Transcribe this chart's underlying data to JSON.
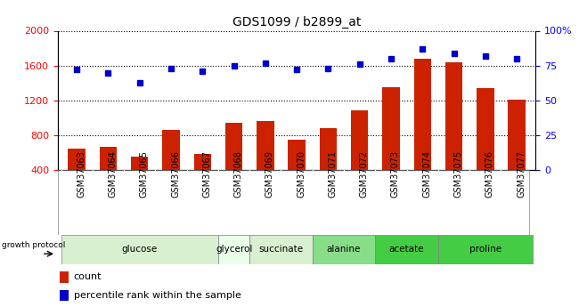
{
  "title": "GDS1099 / b2899_at",
  "samples": [
    "GSM37063",
    "GSM37064",
    "GSM37065",
    "GSM37066",
    "GSM37067",
    "GSM37068",
    "GSM37069",
    "GSM37070",
    "GSM37071",
    "GSM37072",
    "GSM37073",
    "GSM37074",
    "GSM37075",
    "GSM37076",
    "GSM37077"
  ],
  "counts": [
    650,
    670,
    560,
    860,
    590,
    950,
    970,
    755,
    880,
    1090,
    1350,
    1680,
    1640,
    1340,
    1210
  ],
  "percentiles": [
    72,
    70,
    63,
    73,
    71,
    75,
    77,
    72,
    73,
    76,
    80,
    87,
    84,
    82,
    80
  ],
  "bar_color": "#cc2200",
  "dot_color": "#0000cc",
  "ylim_left": [
    400,
    2000
  ],
  "ylim_right": [
    0,
    100
  ],
  "yticks_left": [
    400,
    800,
    1200,
    1600,
    2000
  ],
  "yticks_right": [
    0,
    25,
    50,
    75,
    100
  ],
  "groups": [
    {
      "label": "glucose",
      "indices": [
        0,
        1,
        2,
        3,
        4
      ],
      "color": "#d8f0d0"
    },
    {
      "label": "glycerol",
      "indices": [
        5
      ],
      "color": "#e8ffe8"
    },
    {
      "label": "succinate",
      "indices": [
        6,
        7
      ],
      "color": "#d8f0d0"
    },
    {
      "label": "alanine",
      "indices": [
        8,
        9
      ],
      "color": "#88dd88"
    },
    {
      "label": "acetate",
      "indices": [
        10,
        11
      ],
      "color": "#44cc44"
    },
    {
      "label": "proline",
      "indices": [
        12,
        13,
        14
      ],
      "color": "#44cc44"
    }
  ],
  "growth_protocol_label": "growth protocol",
  "legend_count_label": "count",
  "legend_pct_label": "percentile rank within the sample",
  "plot_bg_color": "#ffffff",
  "xticklabel_bg": "#d0d0d0"
}
